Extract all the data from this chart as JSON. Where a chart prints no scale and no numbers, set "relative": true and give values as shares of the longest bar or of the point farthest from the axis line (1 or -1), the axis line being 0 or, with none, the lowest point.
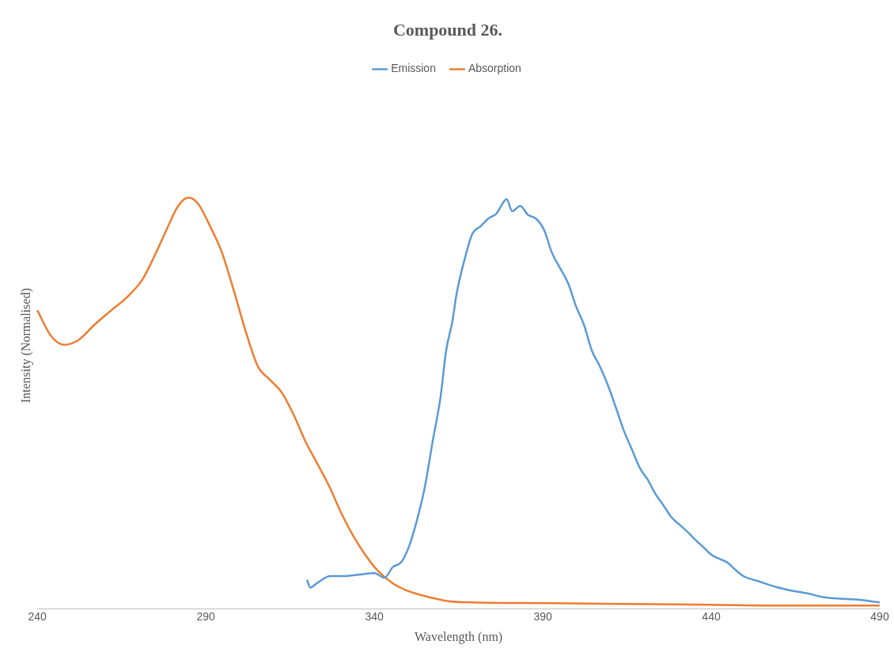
{
  "chart_data": {
    "type": "line",
    "title": "Compound 26.",
    "xlabel": "Wavelength (nm)",
    "ylabel": "Intensity (Normalised)",
    "relative": true,
    "xlim": [
      240,
      490
    ],
    "xticks": [
      240,
      290,
      340,
      390,
      440,
      490
    ],
    "tick_labels": "x",
    "legend": "top",
    "grid": false,
    "marker": "none",
    "line_style": "solid",
    "series": [
      {
        "name": "Emission",
        "color": "#5b9bd5",
        "x": [
          320,
          321,
          323,
          327,
          331,
          336,
          340,
          343,
          345.5,
          347.9,
          350.2,
          352.6,
          355,
          357.3,
          359.7,
          361.3,
          363.2,
          364.4,
          366.7,
          369.1,
          371.5,
          373.8,
          376.2,
          379.3,
          380.9,
          383.3,
          385.6,
          388,
          390.4,
          392.7,
          395.1,
          397.5,
          399.8,
          402.2,
          404.6,
          406.9,
          409.3,
          411.7,
          414,
          416.4,
          418.8,
          421.1,
          423.5,
          425.9,
          428.2,
          430.6,
          433,
          435.3,
          437.7,
          440,
          442.4,
          444.8,
          447.2,
          449.5,
          454.2,
          459,
          463.6,
          468.4,
          473.1,
          477.8,
          482.5,
          487.2,
          490
        ],
        "values": [
          0.07,
          0.051,
          0.062,
          0.079,
          0.079,
          0.083,
          0.086,
          0.075,
          0.101,
          0.112,
          0.149,
          0.213,
          0.296,
          0.406,
          0.517,
          0.627,
          0.7,
          0.765,
          0.847,
          0.912,
          0.93,
          0.949,
          0.961,
          0.996,
          0.967,
          0.98,
          0.958,
          0.949,
          0.921,
          0.866,
          0.829,
          0.792,
          0.737,
          0.691,
          0.627,
          0.59,
          0.544,
          0.489,
          0.434,
          0.388,
          0.342,
          0.314,
          0.278,
          0.25,
          0.222,
          0.204,
          0.186,
          0.167,
          0.149,
          0.131,
          0.121,
          0.112,
          0.094,
          0.079,
          0.066,
          0.053,
          0.044,
          0.037,
          0.028,
          0.024,
          0.022,
          0.018,
          0.015
        ]
      },
      {
        "name": "Absorption",
        "color": "#ed7d31",
        "x": [
          240,
          244,
          248,
          252.3,
          257,
          261.7,
          266.4,
          271.2,
          274.7,
          278.3,
          281.8,
          284.9,
          287.7,
          291.3,
          294.8,
          298.3,
          301.9,
          305.4,
          309,
          312.5,
          316.1,
          319.6,
          323.2,
          326.7,
          330.2,
          333.8,
          337.3,
          340.8,
          345.5,
          350.2,
          356.1,
          362,
          369.1,
          392.7,
          416.3,
          440,
          463.6,
          490
        ],
        "values": [
          0.726,
          0.664,
          0.642,
          0.654,
          0.691,
          0.724,
          0.756,
          0.801,
          0.857,
          0.921,
          0.98,
          1,
          0.985,
          0.93,
          0.866,
          0.774,
          0.673,
          0.59,
          0.557,
          0.526,
          0.471,
          0.406,
          0.351,
          0.296,
          0.232,
          0.176,
          0.131,
          0.094,
          0.061,
          0.042,
          0.028,
          0.018,
          0.015,
          0.013,
          0.011,
          0.009,
          0.007,
          0.007
        ]
      }
    ]
  }
}
